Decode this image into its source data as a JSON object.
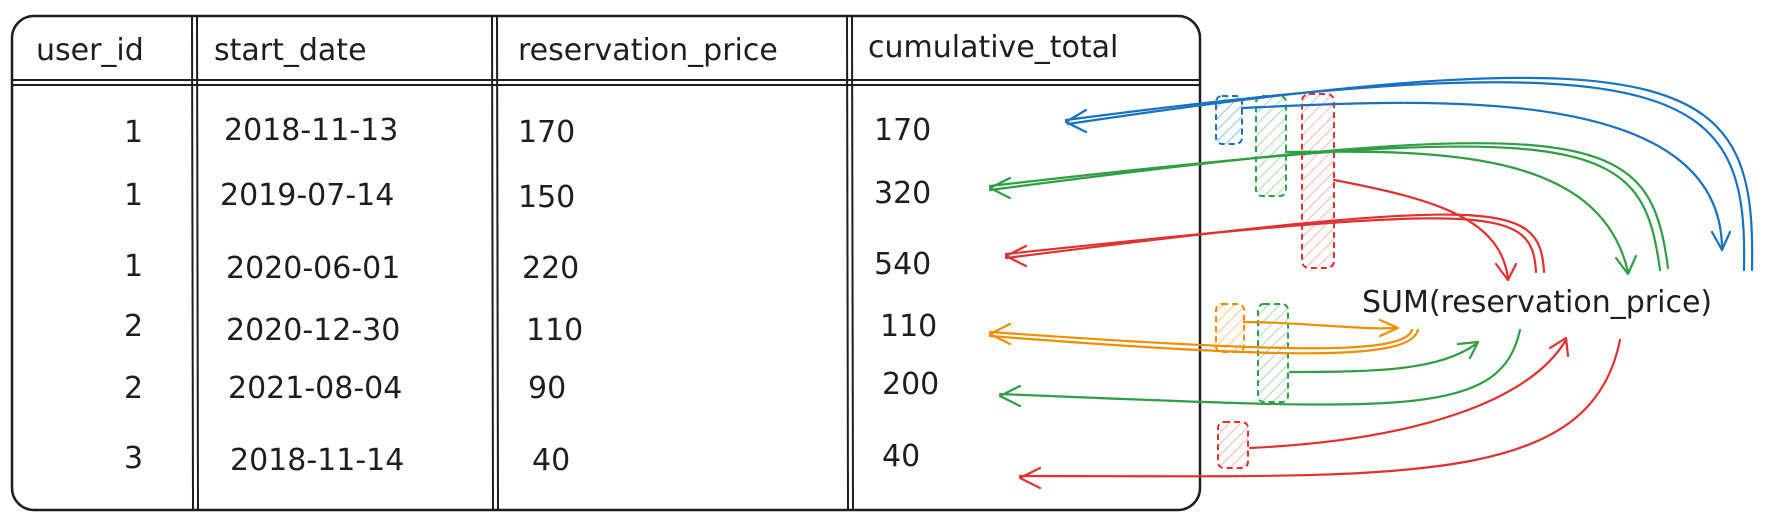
{
  "table": {
    "columns": [
      "user_id",
      "start_date",
      "reservation_price",
      "cumulative_total"
    ],
    "rows": [
      [
        "1",
        "2018-11-13",
        "170",
        "170"
      ],
      [
        "1",
        "2019-07-14",
        "150",
        "320"
      ],
      [
        "1",
        "2020-06-01",
        "220",
        "540"
      ],
      [
        "2",
        "2020-12-30",
        "110",
        "110"
      ],
      [
        "2",
        "2021-08-04",
        "90",
        "200"
      ],
      [
        "3",
        "2018-11-14",
        "40",
        "40"
      ]
    ]
  },
  "window_function": {
    "label": "SUM(reservation_price)"
  },
  "colors": {
    "blue": "#1971c2",
    "green": "#2f9e44",
    "red": "#e03131",
    "orange": "#f08c00",
    "ink": "#1e1e1e"
  },
  "windows": [
    {
      "color": "blue",
      "rows": [
        1
      ]
    },
    {
      "color": "green",
      "rows": [
        1,
        2
      ]
    },
    {
      "color": "red",
      "rows": [
        1,
        2,
        3
      ]
    },
    {
      "color": "orange",
      "rows": [
        4
      ]
    },
    {
      "color": "green",
      "rows": [
        4,
        5
      ]
    },
    {
      "color": "red",
      "rows": [
        6
      ]
    }
  ]
}
